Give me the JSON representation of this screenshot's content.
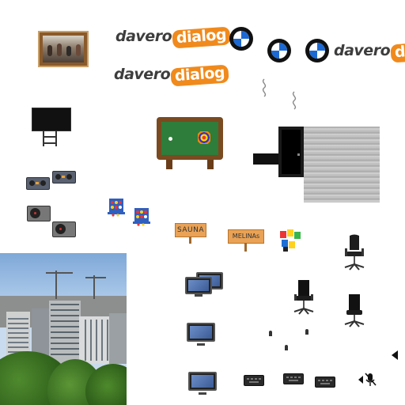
{
  "brand": {
    "logo_word1": "davero",
    "logo_word2": "dialog",
    "logo_colors": {
      "grey": "#3d3d3d",
      "orange": "#f08a1c"
    }
  },
  "signs": {
    "sauna": "SAUNA",
    "melinas": "MELINAs"
  },
  "icons": [
    "framed-photo-icon",
    "bmw-logo-icon",
    "wall-tv-icon",
    "billiard-table-icon",
    "doorway-icon",
    "floor-tile-icon",
    "turntable-icon",
    "connect-four-icon",
    "office-chair-icon",
    "computer-monitor-icon",
    "keyboard-icon",
    "mic-muted-icon",
    "play-left-icon",
    "city-skyline-photo"
  ]
}
